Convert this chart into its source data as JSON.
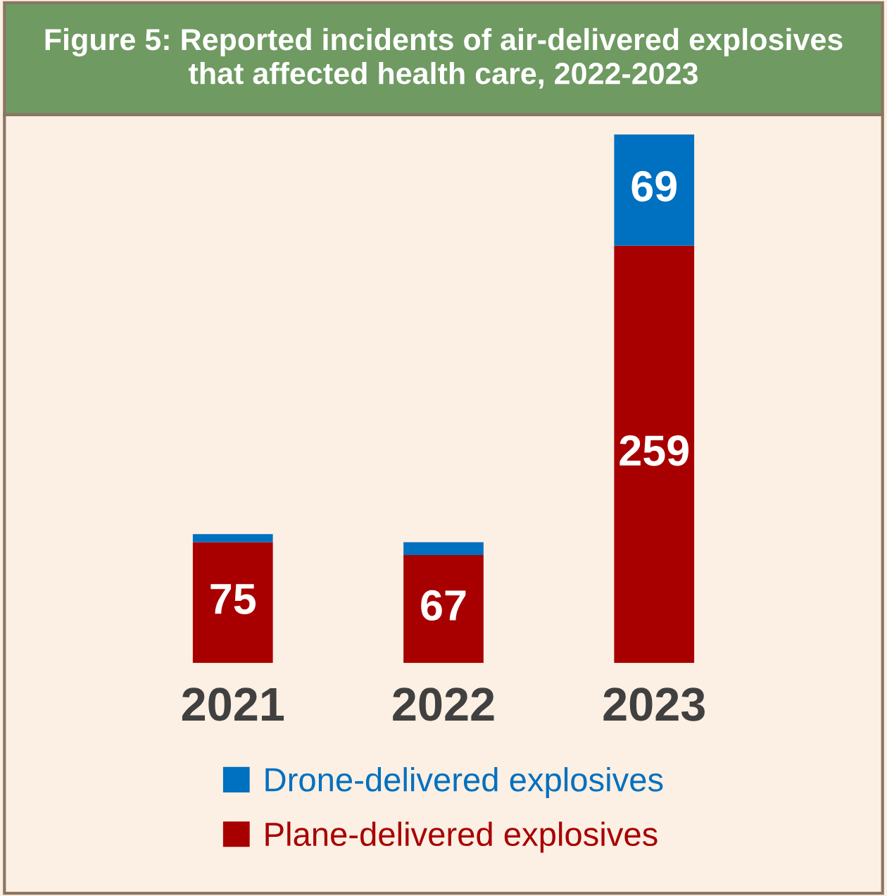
{
  "chart_data": {
    "type": "bar",
    "stacked": true,
    "title": "Figure 5: Reported incidents of air-delivered explosives\nthat affected health care, 2022-2023",
    "categories": [
      "2021",
      "2022",
      "2023"
    ],
    "series": [
      {
        "name": "Plane-delivered explosives",
        "color": "#a80000",
        "values": [
          75,
          67,
          259
        ],
        "value_labels": [
          "75",
          "67",
          "259"
        ]
      },
      {
        "name": "Drone-delivered explosives",
        "color": "#0070c0",
        "values": [
          5,
          8,
          69
        ],
        "value_labels": [
          null,
          null,
          "69"
        ]
      }
    ],
    "legend": "bottom",
    "tick_labels": "x",
    "grid": false
  }
}
